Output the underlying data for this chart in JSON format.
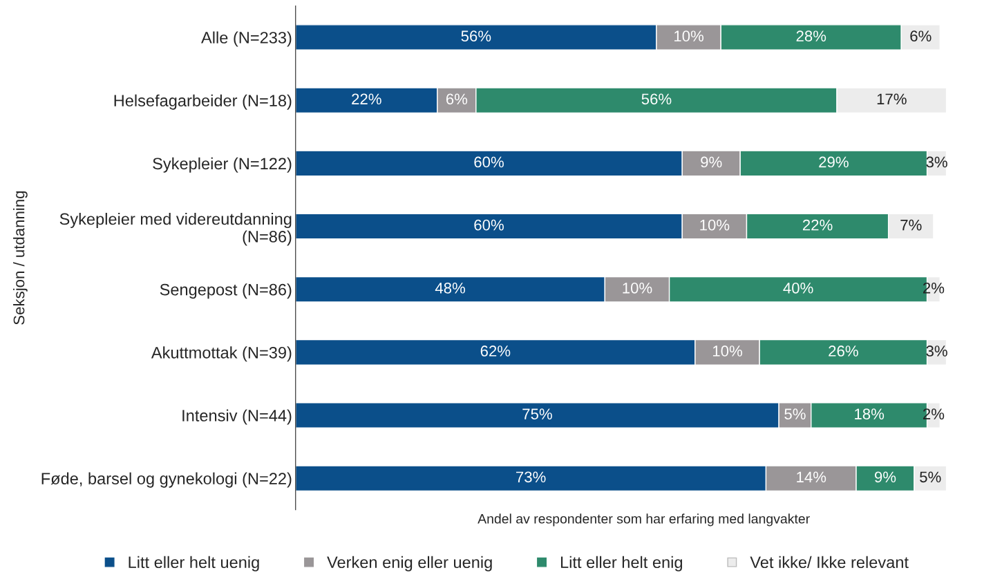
{
  "chart_data": {
    "type": "bar",
    "orientation": "horizontal",
    "stacked": true,
    "xlabel": "Andel av respondenter som har erfaring med langvakter",
    "ylabel": "Seksjon / utdanning",
    "categories": [
      "Alle (N=233)",
      "Helsefagarbeider (N=18)",
      "Sykepleier (N=122)",
      "Sykepleier med videreutdanning\n(N=86)",
      "Sengepost (N=86)",
      "Akuttmottak (N=39)",
      "Intensiv (N=44)",
      "Føde, barsel og gynekologi (N=22)"
    ],
    "series": [
      {
        "name": "Litt eller helt uenig",
        "color": "#0b4f8a",
        "values": [
          56,
          22,
          60,
          60,
          48,
          62,
          75,
          73
        ],
        "value_labels": [
          "56%",
          "22%",
          "60%",
          "60%",
          "48%",
          "62%",
          "75%",
          "73%"
        ]
      },
      {
        "name": "Verken enig eller uenig",
        "color": "#9a9698",
        "values": [
          10,
          6,
          9,
          10,
          10,
          10,
          5,
          14
        ],
        "value_labels": [
          "10%",
          "6%",
          "9%",
          "10%",
          "10%",
          "10%",
          "5%",
          "14%"
        ]
      },
      {
        "name": "Litt eller helt enig",
        "color": "#2e8a6c",
        "values": [
          28,
          56,
          29,
          22,
          40,
          26,
          18,
          9
        ],
        "value_labels": [
          "28%",
          "56%",
          "29%",
          "22%",
          "40%",
          "26%",
          "18%",
          "9%"
        ]
      },
      {
        "name": "Vet ikke/ Ikke relevant",
        "color": "#ececec",
        "values": [
          6,
          17,
          3,
          7,
          2,
          3,
          2,
          5
        ],
        "value_labels": [
          "6%",
          "17%",
          "3%",
          "7%",
          "2%",
          "3%",
          "2%",
          "5%"
        ]
      }
    ],
    "tick_labels": "y",
    "legend": "bottom",
    "grid": false
  }
}
